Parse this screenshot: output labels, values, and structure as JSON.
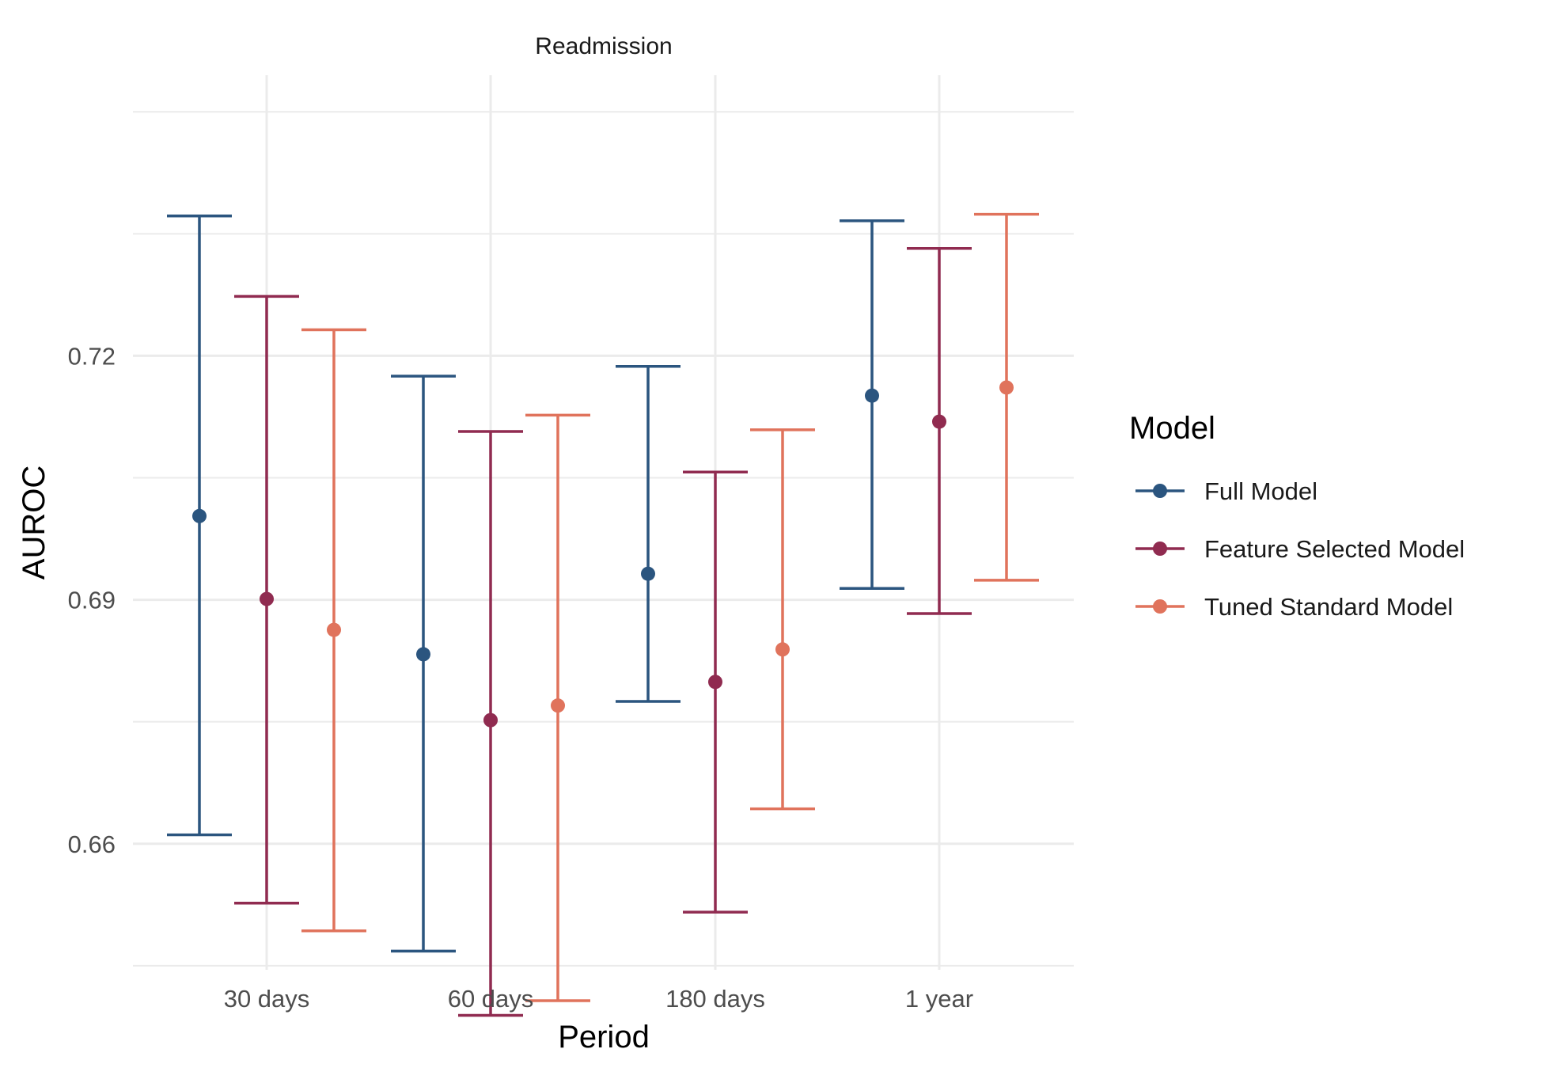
{
  "chart_data": {
    "type": "errorbar",
    "title": "Readmission",
    "xlabel": "Period",
    "ylabel": "AUROC",
    "categories": [
      "30 days",
      "60 days",
      "180 days",
      "1 year"
    ],
    "y_ticks": [
      "0.66",
      "0.69",
      "0.72"
    ],
    "ylim": [
      0.6445,
      0.7545
    ],
    "grid": true,
    "legend": {
      "title": "Model",
      "position": "right"
    },
    "series": [
      {
        "name": "Full Model",
        "color": "#2b557f",
        "values": [
          0.7003,
          0.6833,
          0.6932,
          0.7151
        ],
        "lower": [
          0.6611,
          0.6468,
          0.6775,
          0.6914
        ],
        "upper": [
          0.7372,
          0.7175,
          0.7187,
          0.7366
        ]
      },
      {
        "name": "Feature Selected Model",
        "color": "#902b50",
        "values": [
          0.6901,
          0.6752,
          0.6799,
          0.7119
        ],
        "lower": [
          0.6527,
          0.6389,
          0.6516,
          0.6883
        ],
        "upper": [
          0.7273,
          0.7107,
          0.7057,
          0.7332
        ]
      },
      {
        "name": "Tuned Standard Model",
        "color": "#e0735c",
        "values": [
          0.6863,
          0.677,
          0.6839,
          0.7161
        ],
        "lower": [
          0.6493,
          0.6407,
          0.6643,
          0.6924
        ],
        "upper": [
          0.7232,
          0.7127,
          0.7109,
          0.7374
        ]
      }
    ]
  }
}
